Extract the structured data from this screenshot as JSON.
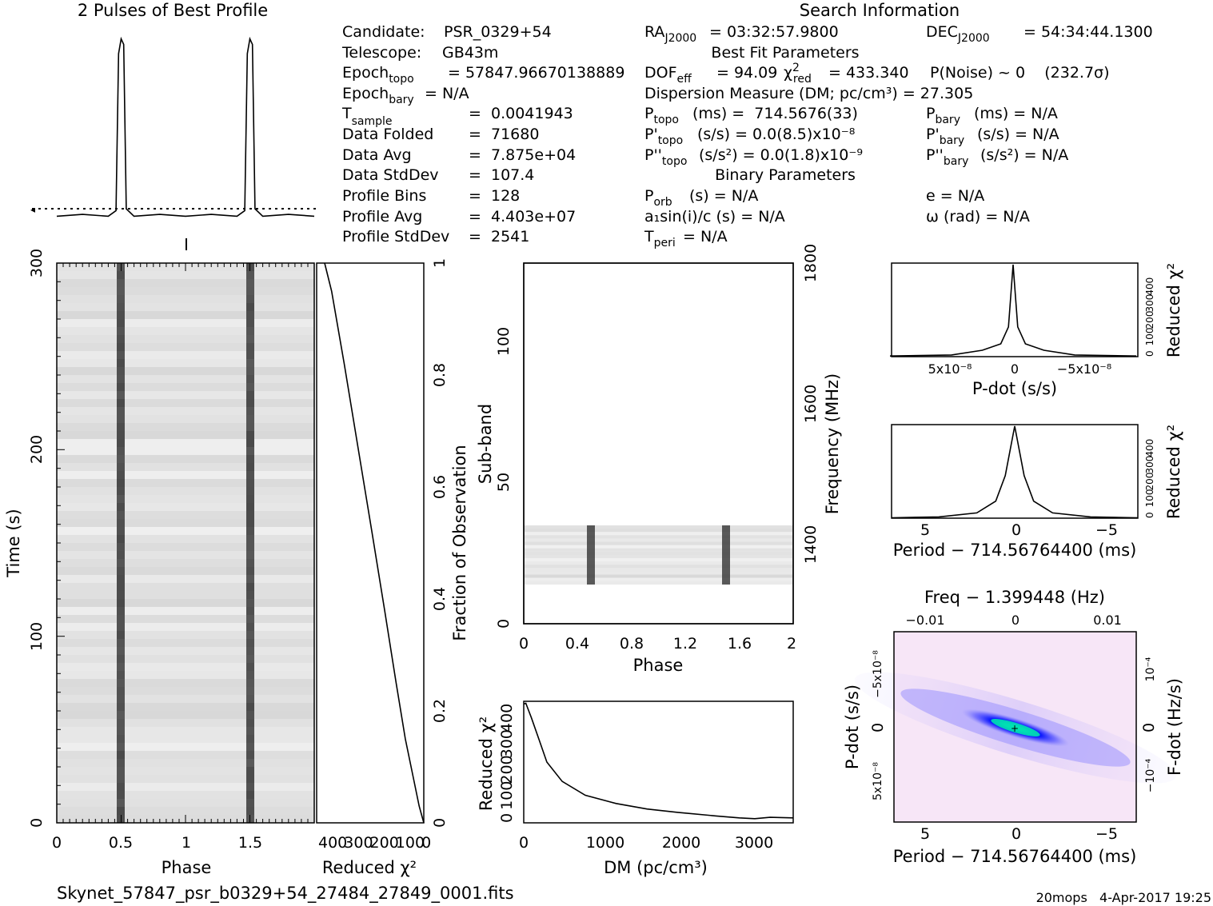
{
  "header": {
    "profile_title": "2 Pulses of Best Profile",
    "search_title": "Search Information",
    "best_fit_title": "Best Fit Parameters",
    "binary_title": "Binary Parameters"
  },
  "info_left": [
    {
      "label": "Candidate:",
      "value": "PSR_0329+54"
    },
    {
      "label": "Telescope:",
      "value": "GB43m"
    },
    {
      "label": "Epoch",
      "sub": "topo",
      "value": "= 57847.96670138889"
    },
    {
      "label": "Epoch",
      "sub": "bary",
      "value": "= N/A"
    },
    {
      "label": "T",
      "sub": "sample",
      "value": "=  0.0041943"
    },
    {
      "label": "Data Folded",
      "value": "=  71680"
    },
    {
      "label": "Data Avg",
      "value": "=  7.875e+04"
    },
    {
      "label": "Data StdDev",
      "value": "=  107.4"
    },
    {
      "label": "Profile Bins",
      "value": "=  128"
    },
    {
      "label": "Profile Avg",
      "value": "=  4.403e+07"
    },
    {
      "label": "Profile StdDev",
      "value": "=  2541"
    }
  ],
  "info_mid": {
    "ra": "= 03:32:57.9800",
    "dof_value": "= 94.09",
    "chi2_value": "= 433.340",
    "pnoise": "P(Noise) ~ 0    (232.7σ)",
    "dm_line": "Dispersion Measure (DM; pc/cm³) = 27.305",
    "ptopo": "(ms) =  714.5676(33)",
    "pdot_topo": "(s/s) = 0.0(8.5)x10⁻⁸",
    "pddot_topo": "(s/s²) = 0.0(1.8)x10⁻⁹",
    "porb": "(s) = N/A",
    "a1sini": "a₁sin(i)/c (s) = N/A",
    "tperi": "= N/A"
  },
  "info_right": {
    "dec": "= 54:34:44.1300",
    "pbary": "(ms) = N/A",
    "pdot_bary": "(s/s) = N/A",
    "pddot_bary": "(s/s²) = N/A",
    "ecc": "e = N/A",
    "omega": "ω (rad) = N/A"
  },
  "footer": {
    "filename": "Skynet_57847_psr_b0329+54_27484_27849_0001.fits",
    "stamp": "20mops   4-Apr-2017 19:25"
  },
  "colors": {
    "ink": "#000000",
    "grey_bg": "#e6e6e6",
    "pulse": "#3a3a3a",
    "ppdot_blue": "#1a1aff",
    "ppdot_cyan": "#00e0c0",
    "ppdot_pink": "#f4dcf4"
  },
  "chart_data": [
    {
      "type": "line",
      "name": "profile",
      "title": "2 Pulses of Best Profile",
      "x": [
        0.0,
        0.2,
        0.4,
        0.46,
        0.48,
        0.5,
        0.52,
        0.54,
        0.6,
        0.8,
        1.0,
        1.2,
        1.4,
        1.46,
        1.48,
        1.5,
        1.52,
        1.54,
        1.6,
        1.8,
        2.0
      ],
      "y": [
        0.02,
        0.03,
        0.02,
        0.05,
        0.9,
        0.98,
        0.95,
        0.06,
        0.02,
        0.03,
        0.02,
        0.03,
        0.02,
        0.05,
        0.9,
        0.98,
        0.95,
        0.06,
        0.02,
        0.03,
        0.02
      ],
      "xlim": [
        0,
        2
      ]
    },
    {
      "type": "heatmap",
      "name": "time-phase",
      "xlabel": "Phase",
      "ylabel": "Time (s)",
      "xlim": [
        0,
        2
      ],
      "ylim": [
        0,
        300
      ],
      "xticks": [
        "0",
        "0.5",
        "1",
        "1.5"
      ],
      "yticks": [
        "0",
        "100",
        "200",
        "300"
      ],
      "pulse_phases": [
        0.5,
        1.5
      ]
    },
    {
      "type": "line",
      "name": "reduced-chi2-vs-fraction",
      "xlabel": "Reduced χ²",
      "ylabel": "Fraction of Observation",
      "xticks": [
        "400",
        "300",
        "200",
        "100",
        "0"
      ],
      "yticks": [
        "0",
        "0.2",
        "0.4",
        "0.6",
        "0.8",
        "1"
      ],
      "x": [
        0,
        20,
        45,
        80,
        120,
        170,
        225,
        285,
        345,
        400,
        430
      ],
      "y": [
        0.0,
        0.03,
        0.08,
        0.15,
        0.25,
        0.38,
        0.52,
        0.67,
        0.82,
        0.95,
        1.0
      ]
    },
    {
      "type": "heatmap",
      "name": "subband-phase",
      "xlabel": "Phase",
      "ylabel": "Sub-band",
      "y2label": "Frequency (MHz)",
      "xlim": [
        0,
        2
      ],
      "ylim": [
        0,
        128
      ],
      "xticks": [
        "0",
        "0.4",
        "0.8",
        "1.2",
        "1.6",
        "2"
      ],
      "yticks": [
        "0",
        "50",
        "100"
      ],
      "y2ticks": [
        "1400",
        "1600",
        "1800"
      ],
      "band_subbands": [
        14,
        35
      ],
      "pulse_phases": [
        0.5,
        1.5
      ]
    },
    {
      "type": "line",
      "name": "dm-curve",
      "xlabel": "DM (pc/cm³)",
      "ylabel": "Reduced χ²",
      "xticks": [
        "0",
        "1000",
        "2000",
        "3000"
      ],
      "yticks": [
        "0",
        "100",
        "200",
        "300",
        "400"
      ],
      "x": [
        0,
        27,
        100,
        200,
        300,
        500,
        800,
        1200,
        1600,
        2000,
        2500,
        2800,
        3000,
        3200,
        3500
      ],
      "y": [
        430,
        433,
        380,
        300,
        220,
        150,
        100,
        70,
        50,
        38,
        25,
        18,
        15,
        20,
        18
      ]
    },
    {
      "type": "line",
      "name": "pdot-curve",
      "xlabel": "P-dot (s/s)",
      "ylabel": "Reduced χ²",
      "xticks": [
        "5x10⁻⁸",
        "0",
        "−5x10⁻⁸"
      ],
      "yticks": [
        "0",
        "100",
        "200",
        "300",
        "400"
      ],
      "x": [
        8e-08,
        4e-08,
        2e-08,
        8e-09,
        3e-09,
        0,
        -3e-09,
        -8e-09,
        -2e-08,
        -4e-08,
        -8e-08
      ],
      "y": [
        3,
        8,
        30,
        60,
        140,
        433,
        140,
        60,
        30,
        8,
        3
      ]
    },
    {
      "type": "line",
      "name": "period-curve",
      "xlabel": "Period − 714.56764400 (ms)",
      "ylabel": "Reduced χ²",
      "xticks": [
        "5",
        "0",
        "−5"
      ],
      "yticks": [
        "0",
        "100",
        "200",
        "300",
        "400"
      ],
      "x": [
        6.5,
        4,
        2,
        1,
        0.5,
        0,
        -0.5,
        -1,
        -2,
        -4,
        -6.5
      ],
      "y": [
        2,
        6,
        25,
        80,
        200,
        433,
        200,
        80,
        25,
        6,
        2
      ]
    },
    {
      "type": "heatmap",
      "name": "period-pdot-plane",
      "xlabel": "Period − 714.56764400 (ms)",
      "ylabel": "P-dot (s/s)",
      "x2label": "Freq − 1.399448 (Hz)",
      "y2label": "F-dot (Hz/s)",
      "xticks": [
        "5",
        "0",
        "−5"
      ],
      "yticks": [
        "5x10⁻⁸",
        "0",
        "−5x10⁻⁸"
      ],
      "x2ticks": [
        "−0.01",
        "0",
        "0.01"
      ],
      "y2ticks": [
        "10⁻⁴",
        "0",
        "−10⁻⁴"
      ]
    }
  ]
}
